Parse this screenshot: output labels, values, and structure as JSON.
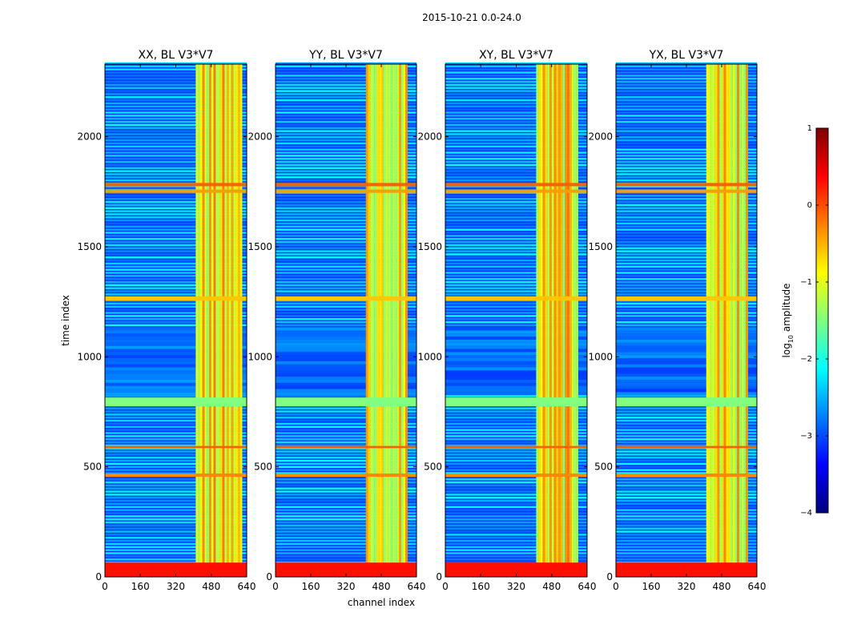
{
  "suptitle": "2015-10-21 0.0-24.0",
  "chart_data": {
    "type": "heatmap",
    "xlabel": "channel index",
    "ylabel": "time index",
    "xlim": [
      0,
      640
    ],
    "ylim": [
      0,
      2330
    ],
    "xticks": [
      0,
      160,
      320,
      480,
      640
    ],
    "xtick_labels": [
      "0",
      "160",
      "320",
      "480",
      "640"
    ],
    "yticks": [
      0,
      500,
      1000,
      1500,
      2000
    ],
    "ytick_labels": [
      "0",
      "500",
      "1000",
      "1500",
      "2000"
    ],
    "colorbar": {
      "label_prefix": "log",
      "label_sub": "10",
      "label_suffix": " amplitude",
      "range": [
        -4,
        1
      ],
      "ticks": [
        1,
        0,
        -1,
        -2,
        -3,
        -4
      ],
      "tick_labels": [
        "1",
        "0",
        "−1",
        "−2",
        "−3",
        "−4"
      ],
      "colors": [
        "#00007f",
        "#0000ff",
        "#007fff",
        "#00ffff",
        "#7fff7f",
        "#ffff00",
        "#ff7f00",
        "#ff0000",
        "#7f0000"
      ]
    },
    "panels": [
      {
        "title": "XX, BL V3*V7",
        "band_channels": [
          410,
          620
        ]
      },
      {
        "title": "YY, BL V3*V7",
        "band_channels": [
          410,
          600
        ]
      },
      {
        "title": "XY, BL V3*V7",
        "band_channels": [
          410,
          600
        ]
      },
      {
        "title": "YX, BL V3*V7",
        "band_channels": [
          410,
          600
        ]
      }
    ],
    "bright_rows": [
      {
        "from": 0,
        "to": 65,
        "level": 0.3
      },
      {
        "from": 455,
        "to": 470,
        "level": -0.3
      },
      {
        "from": 585,
        "to": 595,
        "level": -0.1
      },
      {
        "from": 775,
        "to": 815,
        "level": -1.5
      },
      {
        "from": 1255,
        "to": 1275,
        "level": -0.6
      },
      {
        "from": 1745,
        "to": 1760,
        "level": -0.4
      },
      {
        "from": 1775,
        "to": 1790,
        "level": -0.1
      }
    ],
    "quiet_time_range": [
      820,
      1130
    ]
  }
}
